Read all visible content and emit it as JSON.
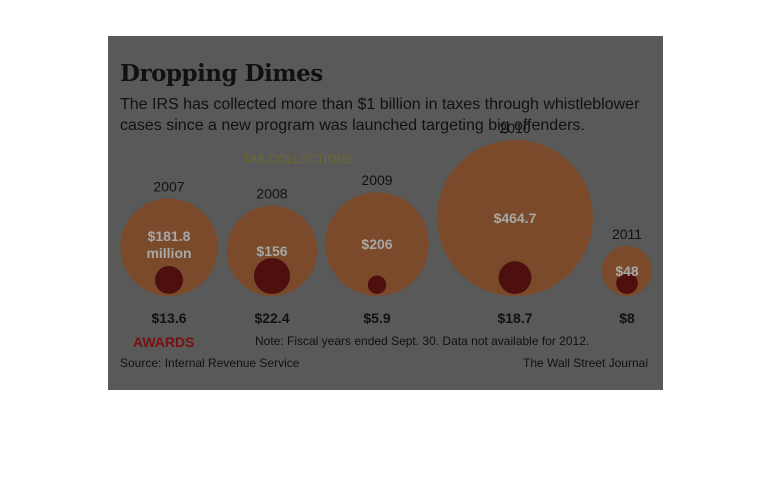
{
  "title": "Dropping Dimes",
  "subtitle": "The IRS has collected more than $1 billion in taxes through whistleblower cases since a new program was launched targeting big offenders.",
  "series_label_collections": "TAX COLLECTIONS",
  "series_label_awards": "AWARDS",
  "note": "Note: Fiscal years ended Sept. 30. Data not available for 2012.",
  "source": "Source: Internal Revenue Service",
  "credit": "The Wall Street Journal",
  "colors": {
    "panel": "#595959",
    "collections": "#7a4a2a",
    "awards": "#4e0f0f",
    "collection_label": "#a8a8a8"
  },
  "chart_data": {
    "type": "bubble",
    "categories": [
      "2007",
      "2008",
      "2009",
      "2010",
      "2011"
    ],
    "series": [
      {
        "name": "TAX COLLECTIONS",
        "values": [
          181.8,
          156,
          206,
          464.7,
          48
        ],
        "labels": [
          "$181.8 million",
          "$156",
          "$206",
          "$464.7",
          "$48"
        ]
      },
      {
        "name": "AWARDS",
        "values": [
          13.6,
          22.4,
          5.9,
          18.7,
          8
        ],
        "labels": [
          "$13.6",
          "$22.4",
          "$5.9",
          "$18.7",
          "$8"
        ]
      }
    ]
  }
}
